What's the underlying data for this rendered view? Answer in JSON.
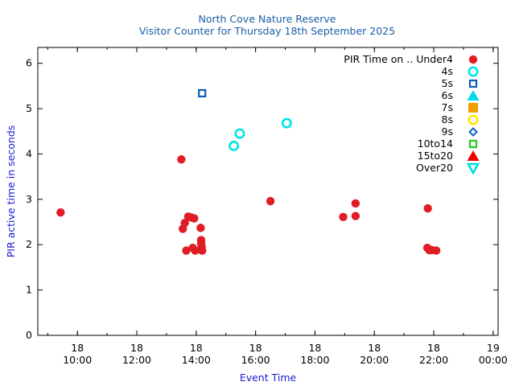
{
  "chart_data": {
    "type": "scatter",
    "title": "North Cove Nature Reserve",
    "subtitle": "Visitor Counter for Thursday 18th September 2025",
    "xlabel": "Event Time",
    "ylabel": "PIR active time in seconds",
    "xlim": [
      "2025-09-18 08:40",
      "2025-09-19 00:10"
    ],
    "ylim": [
      0,
      6.35
    ],
    "yticks": [
      0,
      1,
      2,
      3,
      4,
      5,
      6
    ],
    "xticks": [
      {
        "at": "2025-09-18 10:00",
        "day": "18",
        "time": "10:00"
      },
      {
        "at": "2025-09-18 12:00",
        "day": "18",
        "time": "12:00"
      },
      {
        "at": "2025-09-18 14:00",
        "day": "18",
        "time": "14:00"
      },
      {
        "at": "2025-09-18 16:00",
        "day": "18",
        "time": "16:00"
      },
      {
        "at": "2025-09-18 18:00",
        "day": "18",
        "time": "18:00"
      },
      {
        "at": "2025-09-18 20:00",
        "day": "18",
        "time": "20:00"
      },
      {
        "at": "2025-09-18 22:00",
        "day": "18",
        "time": "22:00"
      },
      {
        "at": "2025-09-19 00:00",
        "day": "19",
        "time": "00:00"
      }
    ],
    "grid": false,
    "legend_position": "top-right",
    "legend_title": "PIR Time on ..",
    "series": [
      {
        "name": "Under4",
        "marker": "circle",
        "color": "#e01c24",
        "points": [
          [
            "2025-09-18 09:26",
            2.71
          ],
          [
            "2025-09-18 13:30",
            3.88
          ],
          [
            "2025-09-18 13:33",
            2.35
          ],
          [
            "2025-09-18 13:37",
            2.48
          ],
          [
            "2025-09-18 13:44",
            2.62
          ],
          [
            "2025-09-18 13:50",
            2.6
          ],
          [
            "2025-09-18 13:56",
            2.58
          ],
          [
            "2025-09-18 13:40",
            1.87
          ],
          [
            "2025-09-18 13:53",
            1.93
          ],
          [
            "2025-09-18 13:58",
            1.87
          ],
          [
            "2025-09-18 14:09",
            2.37
          ],
          [
            "2025-09-18 14:10",
            2.1
          ],
          [
            "2025-09-18 14:10",
            2.03
          ],
          [
            "2025-09-18 14:11",
            1.96
          ],
          [
            "2025-09-18 14:10",
            1.88
          ],
          [
            "2025-09-18 14:12",
            1.87
          ],
          [
            "2025-09-18 16:30",
            2.96
          ],
          [
            "2025-09-18 18:57",
            2.61
          ],
          [
            "2025-09-18 19:22",
            2.91
          ],
          [
            "2025-09-18 19:22",
            2.63
          ],
          [
            "2025-09-18 21:48",
            2.8
          ],
          [
            "2025-09-18 21:47",
            1.93
          ],
          [
            "2025-09-18 21:51",
            1.88
          ],
          [
            "2025-09-18 21:56",
            1.88
          ],
          [
            "2025-09-18 22:05",
            1.87
          ]
        ]
      },
      {
        "name": "4s",
        "marker": "circle-open",
        "color": "#00e5e5",
        "points": [
          [
            "2025-09-18 15:16",
            4.18
          ],
          [
            "2025-09-18 15:28",
            4.45
          ],
          [
            "2025-09-18 17:03",
            4.68
          ]
        ]
      },
      {
        "name": "5s",
        "marker": "square-open",
        "color": "#0a5fb4",
        "points": [
          [
            "2025-09-18 14:12",
            5.34
          ]
        ]
      },
      {
        "name": "6s",
        "marker": "triangle",
        "color": "#00d8f0",
        "points": []
      },
      {
        "name": "7s",
        "marker": "square",
        "color": "#f0a000",
        "points": []
      },
      {
        "name": "8s",
        "marker": "circle-open",
        "color": "#ffe600",
        "points": []
      },
      {
        "name": "9s",
        "marker": "diamond-open",
        "color": "#1060c0",
        "points": []
      },
      {
        "name": "10to14",
        "marker": "square-open",
        "color": "#22cc22",
        "points": []
      },
      {
        "name": "15to20",
        "marker": "triangle",
        "color": "#ee0000",
        "points": []
      },
      {
        "name": "Over20",
        "marker": "triangle-down-open",
        "color": "#00e0e0",
        "points": []
      }
    ]
  }
}
